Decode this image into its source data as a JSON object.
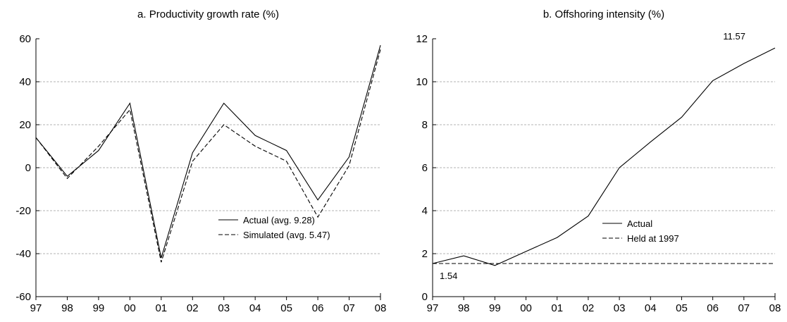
{
  "chart_data": [
    {
      "type": "line",
      "title": "a. Productivity growth rate (%)",
      "categories": [
        "97",
        "98",
        "99",
        "00",
        "01",
        "02",
        "03",
        "04",
        "05",
        "06",
        "07",
        "08"
      ],
      "ylim": [
        -60,
        60
      ],
      "yticks": [
        -60,
        -40,
        -20,
        0,
        20,
        40,
        60
      ],
      "grid": true,
      "legend_placement": "bottom-right",
      "series": [
        {
          "name": "Actual (avg. 9.28)",
          "style": "solid",
          "values": [
            14,
            -4,
            8,
            30,
            -42,
            7,
            30,
            15,
            8,
            -15,
            5,
            57
          ]
        },
        {
          "name": "Simulated (avg. 5.47)",
          "style": "dashed",
          "values": [
            14,
            -5,
            10,
            27,
            -44,
            3,
            20,
            10,
            3,
            -23,
            1,
            55
          ]
        }
      ],
      "annotations": []
    },
    {
      "type": "line",
      "title": "b. Offshoring intensity (%)",
      "categories": [
        "97",
        "98",
        "99",
        "00",
        "01",
        "02",
        "03",
        "04",
        "05",
        "06",
        "07",
        "08"
      ],
      "ylim": [
        0,
        12
      ],
      "yticks": [
        0,
        2,
        4,
        6,
        8,
        10,
        12
      ],
      "grid": true,
      "legend_placement": "middle-right",
      "series": [
        {
          "name": "Actual",
          "style": "solid",
          "values": [
            1.54,
            1.9,
            1.45,
            2.1,
            2.75,
            3.75,
            6.0,
            7.2,
            8.35,
            10.05,
            10.85,
            11.57
          ]
        },
        {
          "name": "Held at 1997",
          "style": "dashed",
          "values": [
            1.54,
            1.54,
            1.54,
            1.54,
            1.54,
            1.54,
            1.54,
            1.54,
            1.54,
            1.54,
            1.54,
            1.54
          ]
        }
      ],
      "annotations": [
        {
          "text": "1.54",
          "series": 0,
          "index": 0,
          "placement": "below-right"
        },
        {
          "text": "11.57",
          "series": 0,
          "index": 11,
          "placement": "above-left"
        }
      ]
    }
  ]
}
